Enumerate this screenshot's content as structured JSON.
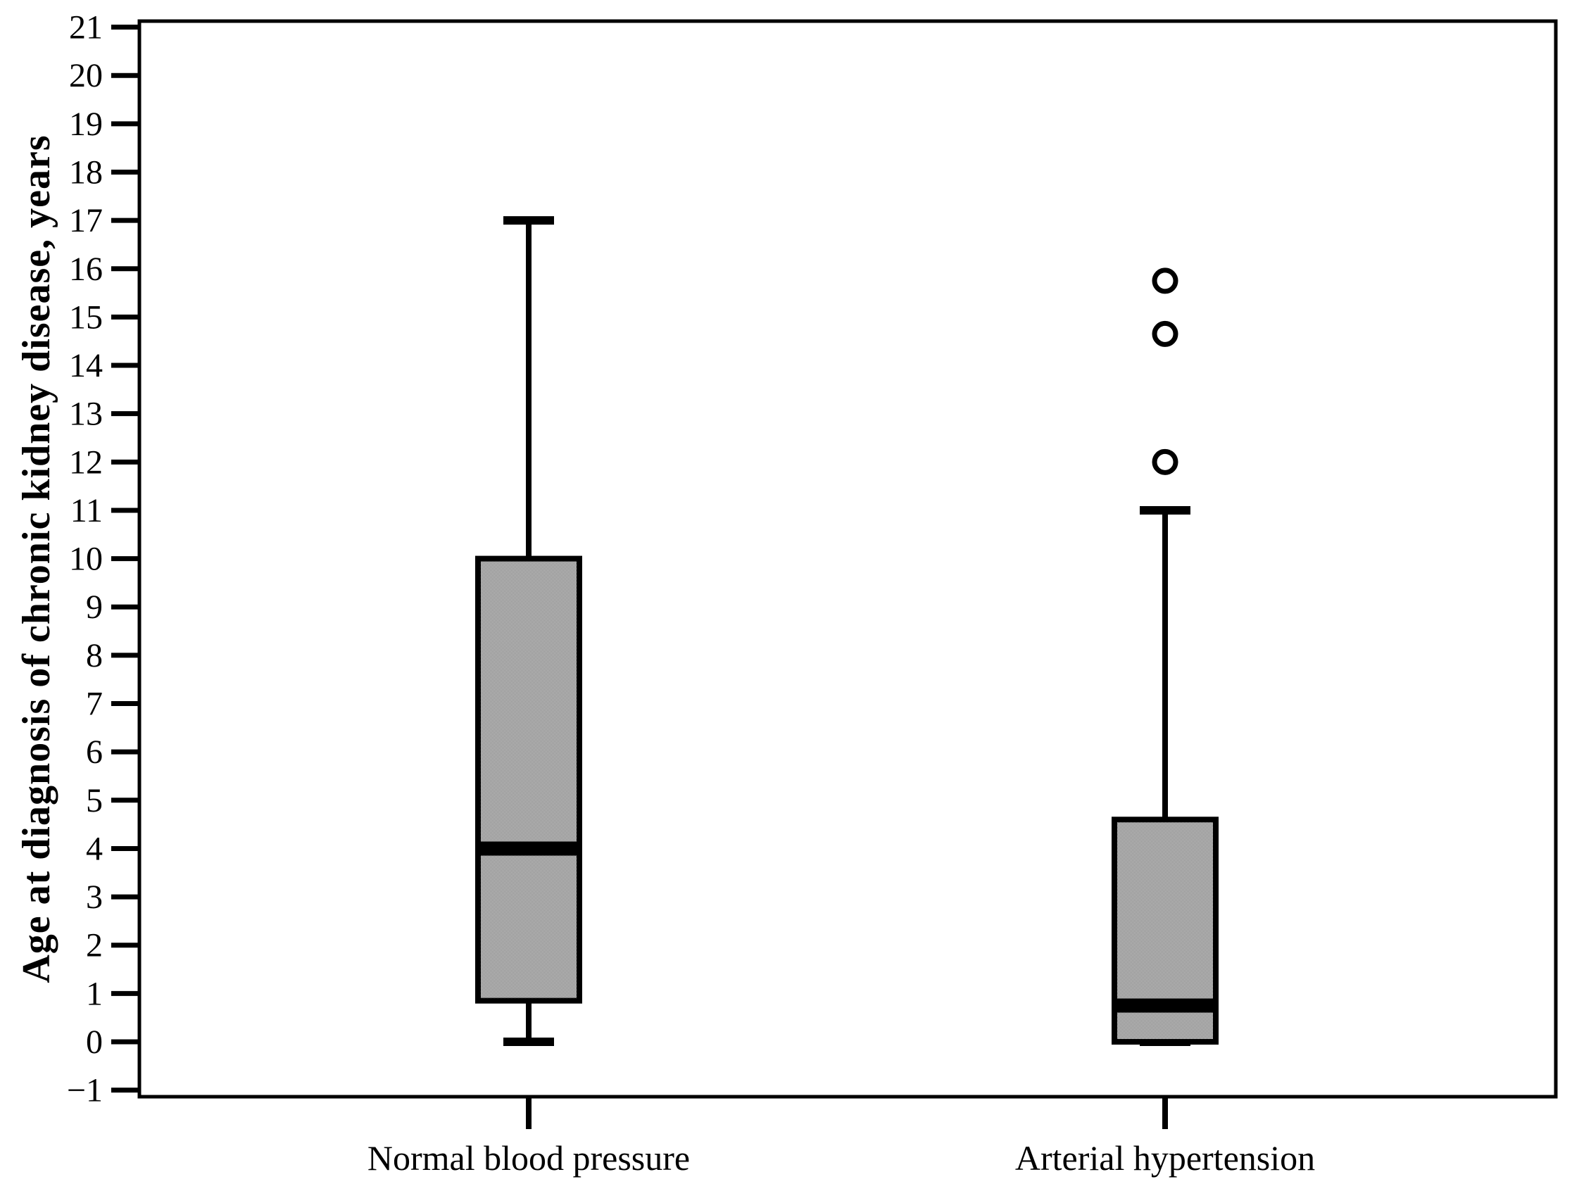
{
  "figure": {
    "background": "#ffffff"
  },
  "chart_data": {
    "type": "boxplot",
    "title": "",
    "xlabel": "",
    "ylabel": "Age at diagnosis of chronic kidney disease, years",
    "categories": [
      "Normal blood pressure",
      "Arterial hypertension"
    ],
    "y_axis": {
      "min": -1,
      "max": 21,
      "tick_step": 1,
      "ticks": [
        -1,
        0,
        1,
        2,
        3,
        4,
        5,
        6,
        7,
        8,
        9,
        10,
        11,
        12,
        13,
        14,
        15,
        16,
        17,
        18,
        19,
        20,
        21
      ]
    },
    "series": [
      {
        "category": "Normal blood pressure",
        "whisker_low": 0,
        "q1": 0.85,
        "median": 4,
        "q3": 10,
        "whisker_high": 17,
        "outliers": []
      },
      {
        "category": "Arterial hypertension",
        "whisker_low": 0,
        "q1": 0,
        "median": 0.75,
        "q3": 4.6,
        "whisker_high": 11,
        "outliers": [
          12,
          14.65,
          15.75
        ]
      }
    ],
    "legend_position": "none",
    "grid": false,
    "style": {
      "line_color": "#000000",
      "box_fill_average": "#a6a6a6",
      "box_dither_dark": "#4d4d4d",
      "box_dither_light": "#ffffff",
      "outlier_fill": "#ffffff"
    }
  }
}
